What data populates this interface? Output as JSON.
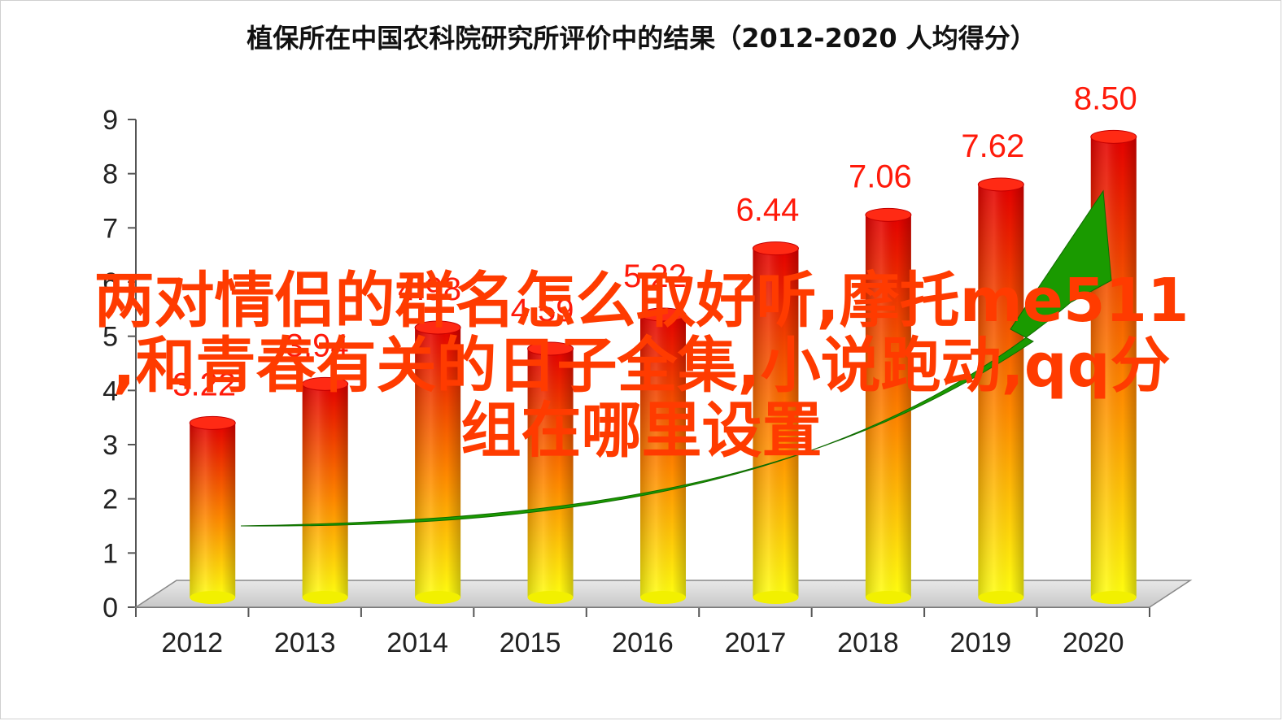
{
  "chart_data": {
    "type": "bar",
    "title": "植保所在中国农科院研究所评价中的结果（2012-2020 人均得分）",
    "xlabel": "",
    "ylabel": "",
    "categories": [
      "2012",
      "2013",
      "2014",
      "2015",
      "2016",
      "2017",
      "2018",
      "2019",
      "2020"
    ],
    "values": [
      3.22,
      3.94,
      4.98,
      4.59,
      5.22,
      6.44,
      7.06,
      7.62,
      8.5
    ],
    "value_labels": [
      "3.22",
      "3.94",
      "4.98",
      "4.59",
      "5.22",
      "6.44",
      "7.06",
      "7.62",
      "8.50"
    ],
    "ylim": [
      0,
      9
    ],
    "yticks": [
      0,
      1,
      2,
      3,
      4,
      5,
      6,
      7,
      8,
      9
    ],
    "grid": false,
    "trend_arrow": true,
    "colors": {
      "bar_top": "#e80000",
      "bar_mid": "#ff7a00",
      "bar_bottom": "#ffff00",
      "label": "#ff1a0a",
      "arrow": "#1a9a00"
    }
  },
  "overlay": {
    "lines": [
      "两对情侣的群名怎么取好听,摩托me511",
      ",和青春有关的日子全集,小说跑动,qq分",
      "组在哪里设置"
    ],
    "color": "#ff3b00"
  }
}
